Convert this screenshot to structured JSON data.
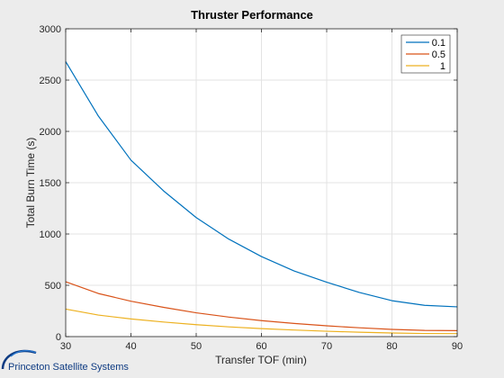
{
  "chart_data": {
    "type": "line",
    "title": "Thruster Performance",
    "xlabel": "Transfer TOF (min)",
    "ylabel": "Total Burn Time (s)",
    "xlim": [
      30,
      90
    ],
    "ylim": [
      0,
      3000
    ],
    "x_ticks": [
      30,
      40,
      50,
      60,
      70,
      80,
      90
    ],
    "y_ticks": [
      0,
      500,
      1000,
      1500,
      2000,
      2500,
      3000
    ],
    "grid": true,
    "legend_position": "top-right",
    "x": [
      30,
      35,
      40,
      45,
      50,
      55,
      60,
      65,
      70,
      75,
      80,
      85,
      90
    ],
    "series": [
      {
        "name": "0.1",
        "color": "#0072bd",
        "values": [
          2680,
          2150,
          1720,
          1420,
          1160,
          950,
          780,
          640,
          530,
          430,
          350,
          305,
          290
        ]
      },
      {
        "name": "0.5",
        "color": "#d95319",
        "values": [
          535,
          420,
          345,
          285,
          232,
          190,
          156,
          128,
          105,
          86,
          70,
          60,
          58
        ]
      },
      {
        "name": "1",
        "color": "#edb120",
        "values": [
          268,
          210,
          172,
          142,
          116,
          95,
          78,
          64,
          52,
          43,
          35,
          30,
          29
        ]
      }
    ]
  },
  "footer": {
    "brand_text": "Princeton Satellite Systems"
  },
  "colors": {
    "background": "#ececec",
    "plot_area": "#ffffff",
    "grid": "#e3e3e3",
    "axis": "#262626",
    "logo_blue": "#0e3b82"
  }
}
